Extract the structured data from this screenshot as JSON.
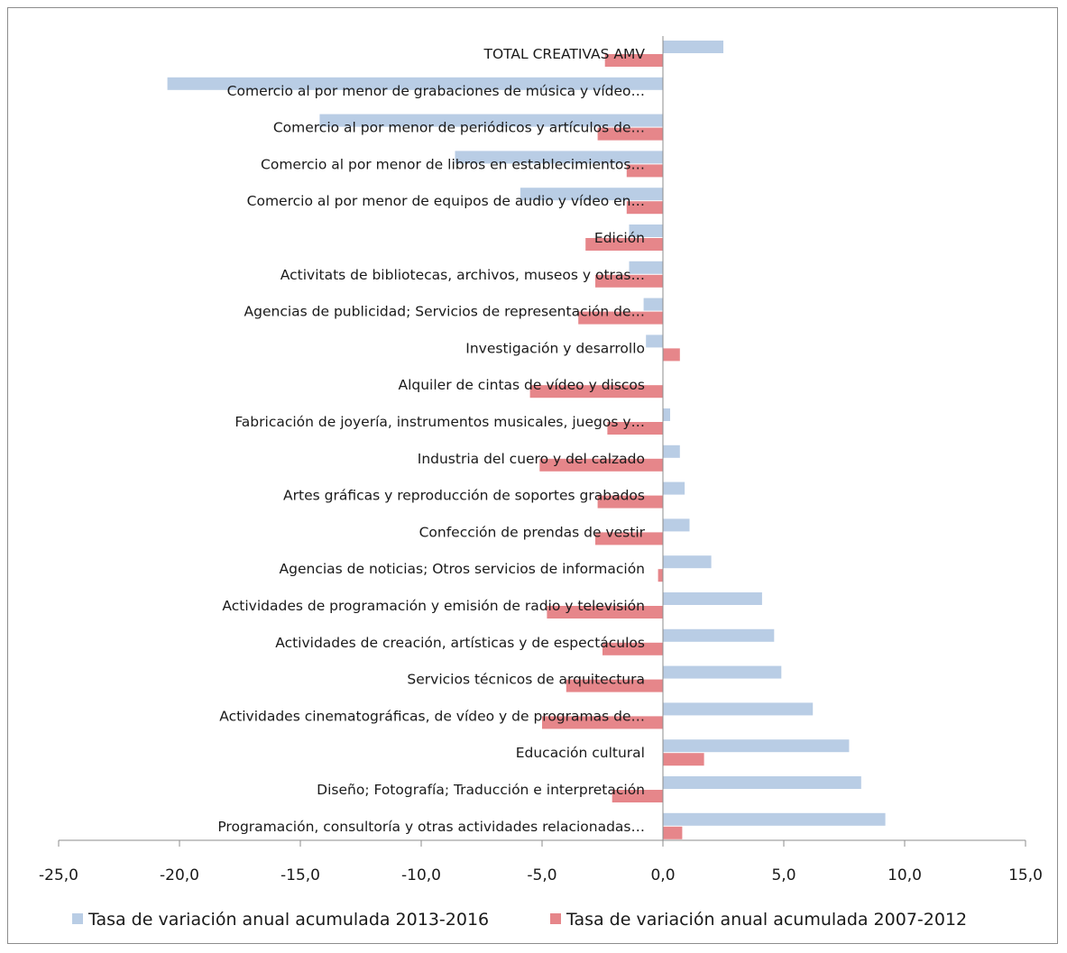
{
  "chart_data": {
    "type": "bar",
    "orientation": "horizontal",
    "title": "",
    "xlabel": "",
    "ylabel": "",
    "xlim": [
      -25,
      15
    ],
    "x_ticks": [
      "-25,0",
      "-20,0",
      "-15,0",
      "-10,0",
      "-5,0",
      "0,0",
      "5,0",
      "10,0",
      "15,0"
    ],
    "x_tick_values": [
      -25,
      -20,
      -15,
      -10,
      -5,
      0,
      5,
      10,
      15
    ],
    "grid": false,
    "legend_position": "bottom",
    "categories": [
      "TOTAL CREATIVAS AMV",
      "Comercio al por menor de grabaciones de música y vídeo…",
      "Comercio al por menor de periódicos y artículos de…",
      "Comercio al por menor de libros en establecimientos…",
      "Comercio al por menor de equipos de audio y vídeo en…",
      "Edición",
      "Activitats de bibliotecas, archivos, museos y otras…",
      "Agencias de publicidad; Servicios de representación de…",
      "Investigación y desarrollo",
      "Alquiler de cintas de vídeo y discos",
      "Fabricación de joyería, instrumentos musicales, juegos y…",
      "Industria del cuero y del calzado",
      "Artes gráficas y reproducción de soportes grabados",
      "Confección de prendas de vestir",
      "Agencias de noticias; Otros servicios de información",
      "Actividades de programación y emisión de radio y televisión",
      "Actividades de creación, artísticas y de espectáculos",
      "Servicios técnicos de arquitectura",
      "Actividades cinematográficas, de vídeo y de programas de…",
      "Educación cultural",
      "Diseño; Fotografía; Traducción e interpretación",
      "Programación, consultoría y otras actividades relacionadas…"
    ],
    "series": [
      {
        "name": "Tasa de variación anual acumulada 2013-2016",
        "color": "#b9cde5",
        "values": [
          2.5,
          -20.5,
          -14.2,
          -8.6,
          -5.9,
          -1.4,
          -1.4,
          -0.8,
          -0.7,
          0.0,
          0.3,
          0.7,
          0.9,
          1.1,
          2.0,
          4.1,
          4.6,
          4.9,
          6.2,
          7.7,
          8.2,
          9.2
        ]
      },
      {
        "name": "Tasa de variación anual acumulada 2007-2012",
        "color": "#e6868a",
        "values": [
          -2.4,
          0.0,
          -2.7,
          -1.5,
          -1.5,
          -3.2,
          -2.8,
          -3.5,
          0.7,
          -5.5,
          -2.3,
          -5.1,
          -2.7,
          -2.8,
          -0.2,
          -4.8,
          -2.5,
          -4.0,
          -5.0,
          1.7,
          -2.1,
          0.8
        ]
      }
    ]
  }
}
